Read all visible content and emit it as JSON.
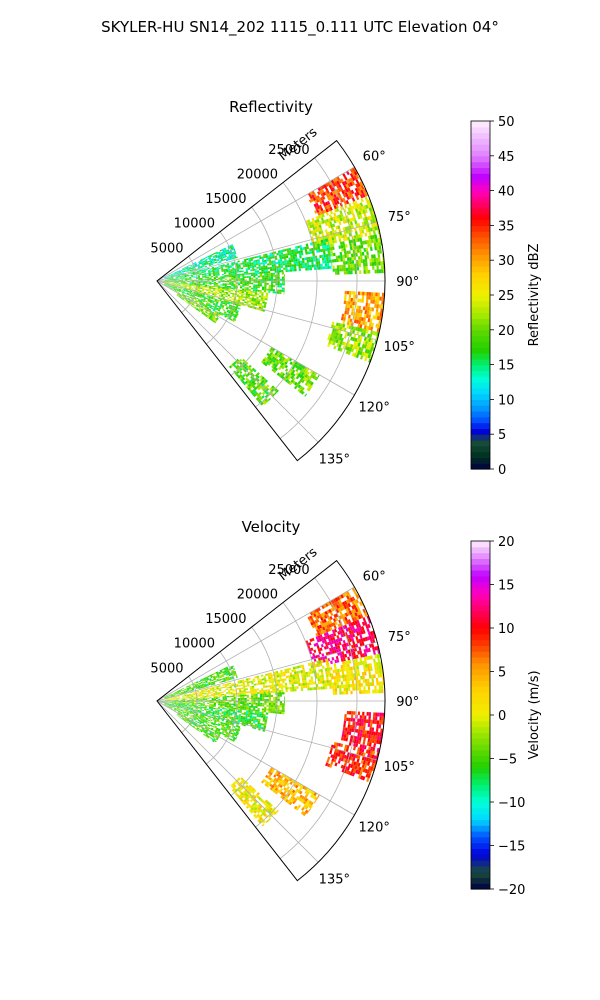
{
  "figure": {
    "title": "SKYLER-HU  SN14_202  1115_0.111 UTC Elevation 04°"
  },
  "chart_data": [
    {
      "type": "heatmap",
      "title": "Reflectivity",
      "radial_label": "Meters",
      "radial_ticks": [
        "5000",
        "10000",
        "15000",
        "20000",
        "25000"
      ],
      "radial_tick_values": [
        5000,
        10000,
        15000,
        20000,
        25000
      ],
      "rmax": 28500,
      "azimuth_ticks": [
        "60°",
        "75°",
        "90°",
        "105°",
        "120°",
        "135°"
      ],
      "azimuth_tick_values": [
        60,
        75,
        90,
        105,
        120,
        135
      ],
      "azimuth_range": [
        52,
        142
      ],
      "grid": true,
      "colorbar": {
        "label": "Reflectivity dBZ",
        "range": [
          0,
          50
        ],
        "ticks": [
          "0",
          "5",
          "10",
          "15",
          "20",
          "25",
          "30",
          "35",
          "40",
          "45",
          "50"
        ],
        "tick_values": [
          0,
          5,
          10,
          15,
          20,
          25,
          30,
          35,
          40,
          45,
          50
        ],
        "colormap": [
          {
            "value": 0,
            "color": "#000040"
          },
          {
            "value": 2,
            "color": "#003322"
          },
          {
            "value": 4,
            "color": "#1a4d3a"
          },
          {
            "value": 5.5,
            "color": "#0000dd"
          },
          {
            "value": 7,
            "color": "#0050ff"
          },
          {
            "value": 9,
            "color": "#00a0ff"
          },
          {
            "value": 11,
            "color": "#00d8ff"
          },
          {
            "value": 13,
            "color": "#00ffd8"
          },
          {
            "value": 15,
            "color": "#00f070"
          },
          {
            "value": 17,
            "color": "#20d000"
          },
          {
            "value": 20,
            "color": "#60d800"
          },
          {
            "value": 22,
            "color": "#a0e800"
          },
          {
            "value": 25,
            "color": "#f0f000"
          },
          {
            "value": 28,
            "color": "#ffd000"
          },
          {
            "value": 31,
            "color": "#ff9000"
          },
          {
            "value": 34,
            "color": "#ff4000"
          },
          {
            "value": 36,
            "color": "#ff0000"
          },
          {
            "value": 38,
            "color": "#ff0060"
          },
          {
            "value": 40,
            "color": "#ff00c0"
          },
          {
            "value": 42,
            "color": "#c000ff"
          },
          {
            "value": 45,
            "color": "#e080ff"
          },
          {
            "value": 50,
            "color": "#fff0ff"
          }
        ]
      },
      "echo_regions": [
        {
          "az": [
            60,
            68
          ],
          "r": [
            21500,
            28500
          ],
          "value": 34
        },
        {
          "az": [
            68,
            78
          ],
          "r": [
            20000,
            28500
          ],
          "value": 24
        },
        {
          "az": [
            78,
            88
          ],
          "r": [
            22000,
            28500
          ],
          "value": 20
        },
        {
          "az": [
            93,
            103
          ],
          "r": [
            23500,
            28500
          ],
          "value": 30
        },
        {
          "az": [
            103,
            111
          ],
          "r": [
            22500,
            28500
          ],
          "value": 22
        },
        {
          "az": [
            120,
            128
          ],
          "r": [
            16500,
            23500
          ],
          "value": 20
        },
        {
          "az": [
            132,
            140
          ],
          "r": [
            14000,
            20500
          ],
          "value": 19
        },
        {
          "az": [
            64,
            74
          ],
          "r": [
            1000,
            10500
          ],
          "value": 14
        },
        {
          "az": [
            76,
            86
          ],
          "r": [
            1000,
            22000
          ],
          "value": 16
        },
        {
          "az": [
            86,
            96
          ],
          "r": [
            500,
            16000
          ],
          "value": 18
        },
        {
          "az": [
            96,
            106
          ],
          "r": [
            500,
            14000
          ],
          "value": 22
        },
        {
          "az": [
            106,
            118
          ],
          "r": [
            1000,
            11000
          ],
          "value": 18
        },
        {
          "az": [
            118,
            126
          ],
          "r": [
            3000,
            9000
          ],
          "value": 20
        }
      ]
    },
    {
      "type": "heatmap",
      "title": "Velocity",
      "radial_label": "Meters",
      "radial_ticks": [
        "5000",
        "10000",
        "15000",
        "20000",
        "25000"
      ],
      "radial_tick_values": [
        5000,
        10000,
        15000,
        20000,
        25000
      ],
      "rmax": 28500,
      "azimuth_ticks": [
        "60°",
        "75°",
        "90°",
        "105°",
        "120°",
        "135°"
      ],
      "azimuth_tick_values": [
        60,
        75,
        90,
        105,
        120,
        135
      ],
      "azimuth_range": [
        52,
        142
      ],
      "grid": true,
      "colorbar": {
        "label": "Velocity (m/s)",
        "range": [
          -20,
          20
        ],
        "ticks": [
          "−20",
          "−15",
          "−10",
          "−5",
          "0",
          "5",
          "10",
          "15",
          "20"
        ],
        "tick_values": [
          -20,
          -15,
          -10,
          -5,
          0,
          5,
          10,
          15,
          20
        ],
        "colormap": [
          {
            "value": -20,
            "color": "#000040"
          },
          {
            "value": -18,
            "color": "#1a4d3a"
          },
          {
            "value": -16,
            "color": "#0000dd"
          },
          {
            "value": -14,
            "color": "#0050ff"
          },
          {
            "value": -12,
            "color": "#00d8ff"
          },
          {
            "value": -10,
            "color": "#00ffd8"
          },
          {
            "value": -8,
            "color": "#00f070"
          },
          {
            "value": -6,
            "color": "#20d000"
          },
          {
            "value": -4,
            "color": "#60d800"
          },
          {
            "value": -2,
            "color": "#a0e800"
          },
          {
            "value": 0,
            "color": "#f0f000"
          },
          {
            "value": 3,
            "color": "#ffd000"
          },
          {
            "value": 6,
            "color": "#ff9000"
          },
          {
            "value": 8,
            "color": "#ff4000"
          },
          {
            "value": 10,
            "color": "#ff0000"
          },
          {
            "value": 12,
            "color": "#ff0060"
          },
          {
            "value": 14,
            "color": "#ff00c0"
          },
          {
            "value": 16,
            "color": "#c000ff"
          },
          {
            "value": 18,
            "color": "#e080ff"
          },
          {
            "value": 20,
            "color": "#fff0ff"
          }
        ]
      },
      "echo_regions": [
        {
          "az": [
            60,
            68
          ],
          "r": [
            21500,
            28500
          ],
          "value": 7
        },
        {
          "az": [
            68,
            78
          ],
          "r": [
            20000,
            28500
          ],
          "value": 12
        },
        {
          "az": [
            78,
            88
          ],
          "r": [
            22000,
            28500
          ],
          "value": 1
        },
        {
          "az": [
            93,
            103
          ],
          "r": [
            23500,
            28500
          ],
          "value": 10
        },
        {
          "az": [
            103,
            111
          ],
          "r": [
            22500,
            28500
          ],
          "value": 9
        },
        {
          "az": [
            120,
            128
          ],
          "r": [
            16500,
            23500
          ],
          "value": 4
        },
        {
          "az": [
            132,
            140
          ],
          "r": [
            14000,
            20500
          ],
          "value": 1
        },
        {
          "az": [
            64,
            74
          ],
          "r": [
            1000,
            10500
          ],
          "value": -5
        },
        {
          "az": [
            76,
            86
          ],
          "r": [
            1000,
            22000
          ],
          "value": 0
        },
        {
          "az": [
            86,
            96
          ],
          "r": [
            500,
            16000
          ],
          "value": -4
        },
        {
          "az": [
            96,
            106
          ],
          "r": [
            500,
            14000
          ],
          "value": -6
        },
        {
          "az": [
            106,
            118
          ],
          "r": [
            1000,
            11000
          ],
          "value": -5
        },
        {
          "az": [
            118,
            126
          ],
          "r": [
            3000,
            9000
          ],
          "value": -5
        }
      ]
    }
  ]
}
